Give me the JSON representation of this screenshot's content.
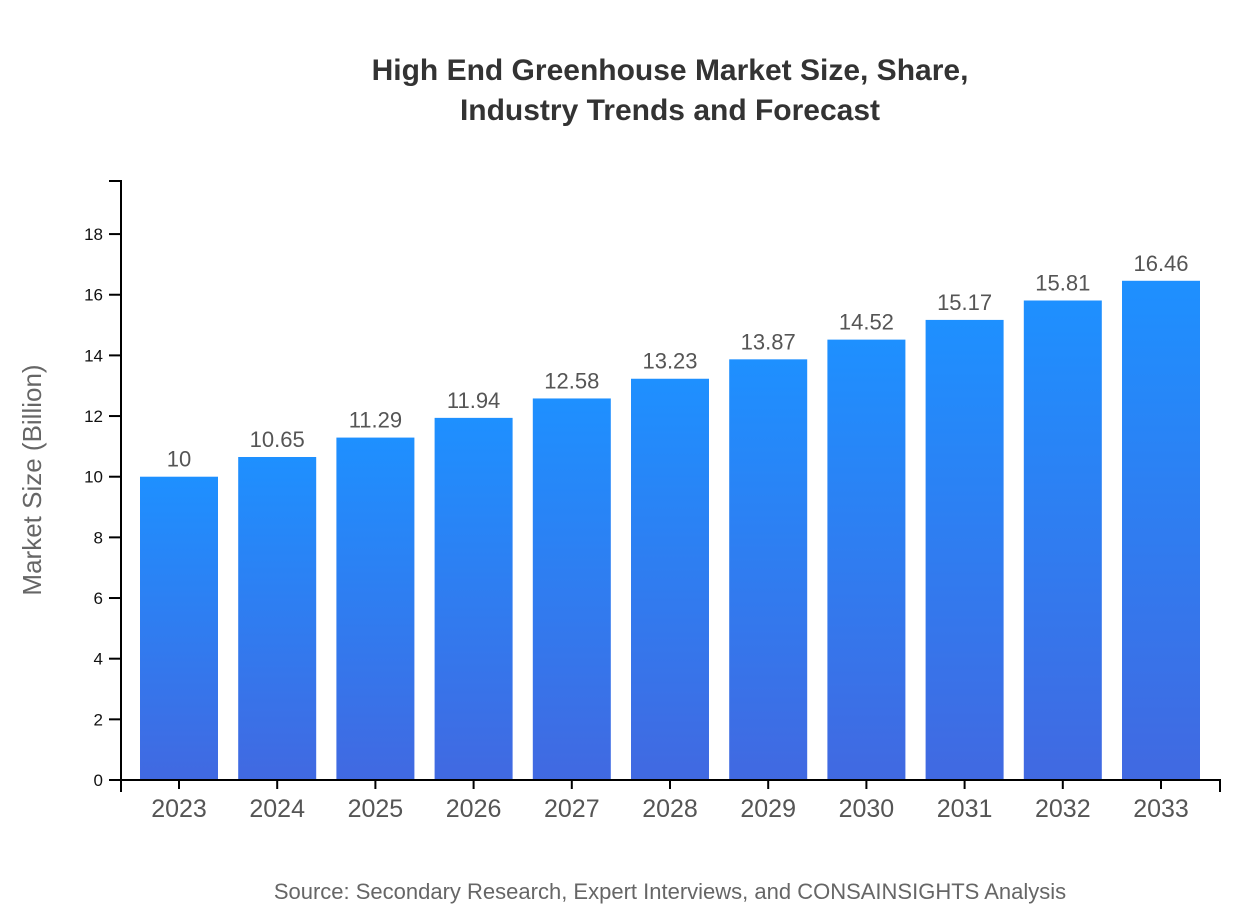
{
  "chart_data": {
    "type": "bar",
    "title_lines": [
      "High End Greenhouse Market Size, Share,",
      "Industry Trends and Forecast"
    ],
    "xlabel": "",
    "ylabel": "Market Size (Billion)",
    "categories": [
      "2023",
      "2024",
      "2025",
      "2026",
      "2027",
      "2028",
      "2029",
      "2030",
      "2031",
      "2032",
      "2033"
    ],
    "values": [
      10,
      10.65,
      11.29,
      11.94,
      12.58,
      13.23,
      13.87,
      14.52,
      15.17,
      15.81,
      16.46
    ],
    "data_labels": [
      "10",
      "10.65",
      "11.29",
      "11.94",
      "12.58",
      "13.23",
      "13.87",
      "14.52",
      "15.17",
      "15.81",
      "16.46"
    ],
    "ylim": [
      0,
      19.75
    ],
    "yticks": [
      0,
      2,
      4,
      6,
      8,
      10,
      12,
      14,
      16,
      18
    ],
    "grid": false,
    "legend": "none",
    "colors": {
      "bar_top": "#1e90ff",
      "bar_bottom": "#4169e1"
    },
    "source": "Source: Secondary Research, Expert Interviews, and CONSAINSIGHTS Analysis"
  }
}
